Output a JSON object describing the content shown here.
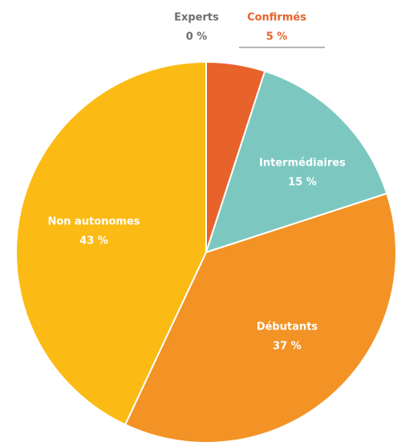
{
  "chart_data": {
    "type": "pie",
    "categories": [
      "Experts",
      "Confirmés",
      "Intermédiaires",
      "Débutants",
      "Non autonomes"
    ],
    "values": [
      0,
      5,
      15,
      37,
      43
    ],
    "value_labels": [
      "0 %",
      "5 %",
      "15 %",
      "37 %",
      "43 %"
    ],
    "colors": [
      "#6d6e71",
      "#e8622c",
      "#7cc8c1",
      "#f39325",
      "#fbbb14"
    ]
  }
}
